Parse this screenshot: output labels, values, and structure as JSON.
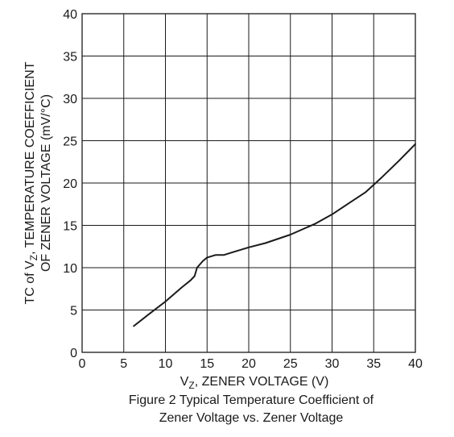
{
  "chart_data": {
    "type": "line",
    "title": "",
    "xlabel": {
      "prefix": "V",
      "sub": "Z",
      "suffix": ", ZENER VOLTAGE (V)"
    },
    "ylabel": {
      "line1_prefix": "TC of V",
      "line1_sub": "Z",
      "line1_suffix": ", TEMPERATURE COEFFICIENT",
      "line2": "OF ZENER VOLTAGE (mV/°C)"
    },
    "xlim": [
      0,
      40
    ],
    "ylim": [
      0,
      40
    ],
    "xticks": [
      "0",
      "5",
      "10",
      "15",
      "20",
      "25",
      "30",
      "35",
      "40"
    ],
    "yticks": [
      "0",
      "5",
      "10",
      "15",
      "20",
      "25",
      "30",
      "35",
      "40"
    ],
    "grid": true,
    "legend": "none",
    "line_color": "#1a1a1a",
    "series": [
      {
        "x": [
          6.2,
          8.0,
          10.0,
          12.0,
          13.0,
          13.5,
          13.8,
          14.5,
          15.0,
          16.0,
          17.0,
          18.0,
          20.0,
          22.0,
          25.0,
          28.0,
          30.0,
          32.0,
          34.0,
          36.0,
          38.0,
          40.0
        ],
        "y": [
          3.1,
          4.5,
          6.0,
          7.7,
          8.5,
          9.0,
          10.0,
          10.8,
          11.2,
          11.5,
          11.5,
          11.8,
          12.4,
          12.9,
          13.9,
          15.2,
          16.3,
          17.6,
          18.9,
          20.7,
          22.6,
          24.6
        ]
      }
    ]
  },
  "caption": {
    "line1": "Figure 2  Typical Temperature Coefficient of",
    "line2": "Zener Voltage vs. Zener Voltage"
  }
}
